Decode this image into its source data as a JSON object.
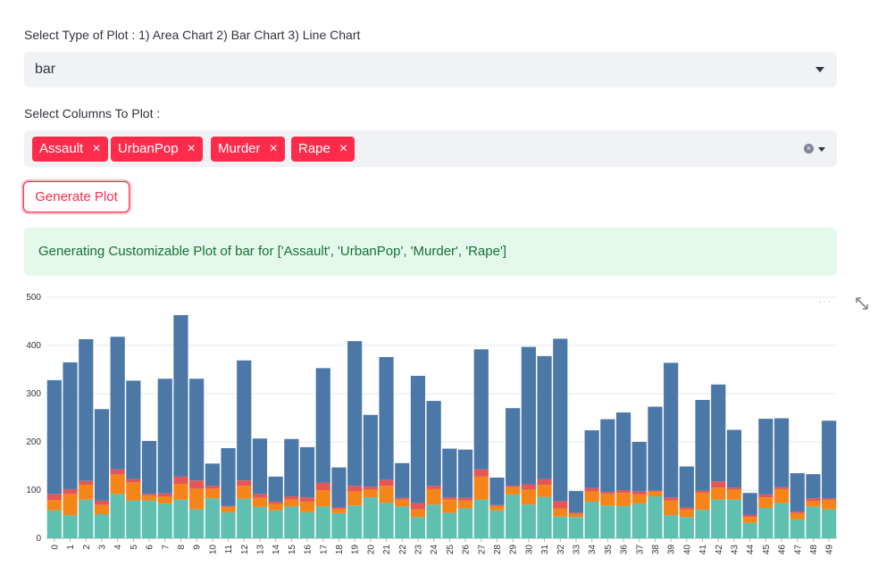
{
  "plot_type": {
    "label": "Select Type of Plot : 1) Area Chart 2) Bar Chart 3) Line Chart",
    "value": "bar"
  },
  "columns": {
    "label": "Select Columns To Plot :",
    "tags": [
      "Assault",
      "UrbanPop",
      "Murder",
      "Rape"
    ],
    "remove_glyph": "×",
    "clear_glyph": "×"
  },
  "button": {
    "label": "Generate Plot"
  },
  "alert": {
    "text": "Generating Customizable Plot of bar for ['Assault', 'UrbanPop', 'Murder', 'Rape']"
  },
  "icons": {
    "menu": "···",
    "fullscreen": "fullscreen-icon"
  },
  "colors": {
    "accent": "#ff2b4b",
    "series": {
      "Assault": "#4c78a8",
      "UrbanPop": "#e45756",
      "Murder": "#f58518",
      "Rape": "#5fbfb0"
    }
  },
  "chart_data": {
    "type": "bar",
    "stacked": true,
    "title": "",
    "xlabel": "",
    "ylabel": "",
    "ylim": [
      0,
      500
    ],
    "yticks": [
      0,
      100,
      200,
      300,
      400,
      500
    ],
    "categories": [
      "0",
      "1",
      "2",
      "3",
      "4",
      "5",
      "6",
      "7",
      "8",
      "9",
      "10",
      "11",
      "12",
      "13",
      "14",
      "15",
      "16",
      "17",
      "18",
      "19",
      "20",
      "21",
      "22",
      "23",
      "24",
      "25",
      "26",
      "27",
      "28",
      "29",
      "30",
      "31",
      "32",
      "33",
      "34",
      "35",
      "36",
      "37",
      "38",
      "39",
      "40",
      "41",
      "42",
      "43",
      "44",
      "45",
      "46",
      "47",
      "48",
      "49"
    ],
    "series": [
      {
        "name": "Rape",
        "values": [
          58,
          48,
          80,
          50,
          92,
          78,
          78,
          72,
          80,
          60,
          83,
          54,
          82,
          65,
          58,
          66,
          54,
          66,
          52,
          68,
          85,
          74,
          66,
          44,
          70,
          53,
          62,
          80,
          58,
          91,
          70,
          86,
          45,
          44,
          76,
          68,
          67,
          72,
          87,
          48,
          44,
          59,
          80,
          80,
          32,
          63,
          73,
          39,
          66,
          60
        ]
      },
      {
        "name": "Murder",
        "values": [
          21,
          44,
          31,
          19,
          40,
          38,
          11,
          15,
          33,
          43,
          20,
          11,
          27,
          19,
          13,
          14,
          22,
          34,
          9,
          29,
          16,
          35,
          14,
          16,
          32,
          27,
          16,
          48,
          9,
          15,
          31,
          25,
          17,
          7,
          21,
          24,
          27,
          19,
          10,
          30,
          16,
          35,
          25,
          21,
          12,
          22,
          29,
          13,
          11,
          19
        ]
      },
      {
        "name": "UrbanPop",
        "values": [
          13,
          10,
          8,
          9,
          11,
          7,
          3,
          6,
          15,
          17,
          6,
          2,
          11,
          8,
          5,
          7,
          9,
          15,
          3,
          12,
          6,
          12,
          4,
          13,
          7,
          5,
          6,
          15,
          2,
          3,
          11,
          12,
          15,
          2,
          7,
          4,
          6,
          6,
          2,
          7,
          4,
          5,
          13,
          4,
          5,
          6,
          4,
          3,
          6,
          4
        ]
      },
      {
        "name": "Assault",
        "values": [
          236,
          263,
          294,
          190,
          275,
          204,
          110,
          238,
          335,
          211,
          46,
          120,
          249,
          115,
          52,
          119,
          104,
          238,
          83,
          300,
          149,
          255,
          72,
          264,
          176,
          101,
          100,
          249,
          57,
          161,
          285,
          255,
          337,
          45,
          120,
          151,
          161,
          103,
          174,
          279,
          85,
          188,
          201,
          120,
          45,
          157,
          143,
          80,
          50,
          161
        ]
      }
    ]
  }
}
